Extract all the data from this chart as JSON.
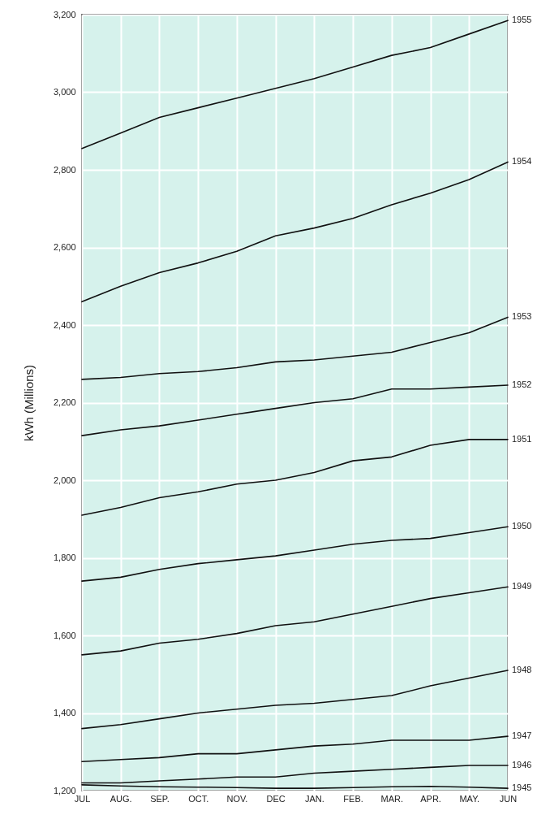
{
  "chart_data": {
    "type": "line",
    "ylabel": "kWh (Millions)",
    "categories": [
      "JUL",
      "AUG.",
      "SEP.",
      "OCT.",
      "NOV.",
      "DEC",
      "JAN.",
      "FEB.",
      "MAR.",
      "APR.",
      "MAY.",
      "JUN"
    ],
    "ylim": [
      1200,
      3200
    ],
    "yticks": [
      {
        "value": 1200,
        "label": "1,200"
      },
      {
        "value": 1400,
        "label": "1,400"
      },
      {
        "value": 1600,
        "label": "1,600"
      },
      {
        "value": 1800,
        "label": "1,800"
      },
      {
        "value": 2000,
        "label": "2,000"
      },
      {
        "value": 2200,
        "label": "2,200"
      },
      {
        "value": 2400,
        "label": "2,400"
      },
      {
        "value": 2600,
        "label": "2,600"
      },
      {
        "value": 2800,
        "label": "2,800"
      },
      {
        "value": 3000,
        "label": "3,000"
      },
      {
        "value": 3200,
        "label": "3,200"
      }
    ],
    "grid": true,
    "legend": false,
    "line_style": "solid",
    "series": [
      {
        "name": "1955",
        "color": "#111111",
        "values": [
          2855,
          2895,
          2935,
          2960,
          2985,
          3010,
          3035,
          3065,
          3095,
          3115,
          3150,
          3185
        ]
      },
      {
        "name": "1954",
        "color": "#111111",
        "values": [
          2460,
          2500,
          2535,
          2560,
          2590,
          2630,
          2650,
          2675,
          2710,
          2740,
          2775,
          2820
        ]
      },
      {
        "name": "1953",
        "color": "#111111",
        "values": [
          2260,
          2265,
          2275,
          2280,
          2290,
          2305,
          2310,
          2320,
          2330,
          2355,
          2380,
          2420
        ]
      },
      {
        "name": "1952",
        "color": "#111111",
        "values": [
          2115,
          2130,
          2140,
          2155,
          2170,
          2185,
          2200,
          2210,
          2235,
          2235,
          2240,
          2245
        ]
      },
      {
        "name": "1951",
        "color": "#111111",
        "values": [
          1910,
          1930,
          1955,
          1970,
          1990,
          2000,
          2020,
          2050,
          2060,
          2090,
          2105,
          2105
        ]
      },
      {
        "name": "1950",
        "color": "#111111",
        "values": [
          1740,
          1750,
          1770,
          1785,
          1795,
          1805,
          1820,
          1835,
          1845,
          1850,
          1865,
          1880
        ]
      },
      {
        "name": "1949",
        "color": "#111111",
        "values": [
          1550,
          1560,
          1580,
          1590,
          1605,
          1625,
          1635,
          1655,
          1675,
          1695,
          1710,
          1725
        ]
      },
      {
        "name": "1948",
        "color": "#111111",
        "values": [
          1360,
          1370,
          1385,
          1400,
          1410,
          1420,
          1425,
          1435,
          1445,
          1470,
          1490,
          1510
        ]
      },
      {
        "name": "1947",
        "color": "#111111",
        "values": [
          1275,
          1280,
          1285,
          1295,
          1295,
          1305,
          1315,
          1320,
          1330,
          1330,
          1330,
          1340
        ]
      },
      {
        "name": "1946",
        "color": "#111111",
        "values": [
          1220,
          1220,
          1225,
          1230,
          1235,
          1235,
          1245,
          1250,
          1255,
          1260,
          1265,
          1265
        ]
      },
      {
        "name": "1945",
        "color": "#111111",
        "values": [
          1215,
          1212,
          1210,
          1209,
          1208,
          1206,
          1206,
          1208,
          1210,
          1211,
          1209,
          1206
        ]
      }
    ]
  }
}
